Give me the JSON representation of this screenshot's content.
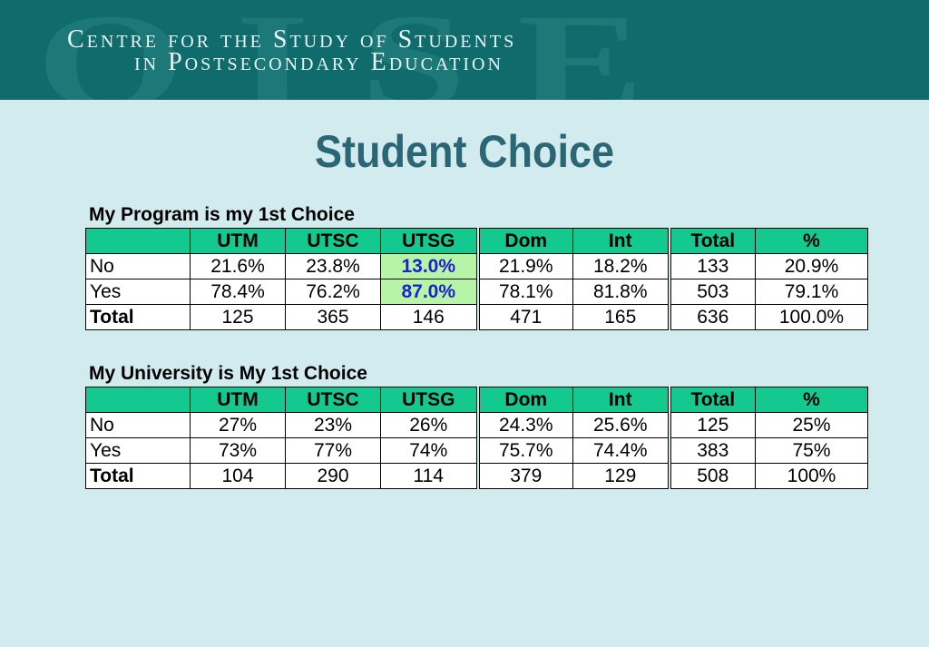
{
  "header": {
    "watermark": "OISE",
    "line1": "Centre for the Study of Students",
    "line2": "in Postsecondary Education"
  },
  "page_title": "Student Choice",
  "tables": [
    {
      "caption": "My Program is my 1st Choice",
      "columns": [
        "",
        "UTM",
        "UTSC",
        "UTSG",
        "Dom",
        "Int",
        "Total",
        "%"
      ],
      "rows": [
        [
          "No",
          "21.6%",
          "23.8%",
          "13.0%",
          "21.9%",
          "18.2%",
          "133",
          "20.9%"
        ],
        [
          "Yes",
          "78.4%",
          "76.2%",
          "87.0%",
          "78.1%",
          "81.8%",
          "503",
          "79.1%"
        ],
        [
          "Total",
          "125",
          "365",
          "146",
          "471",
          "165",
          "636",
          "100.0%"
        ]
      ],
      "highlight_color": "#b7f5a6",
      "highlight_text_color": "#1d1fd6"
    },
    {
      "caption": "My University is My 1st Choice",
      "columns": [
        "",
        "UTM",
        "UTSC",
        "UTSG",
        "Dom",
        "Int",
        "Total",
        "%"
      ],
      "rows": [
        [
          "No",
          "27%",
          "23%",
          "26%",
          "24.3%",
          "25.6%",
          "125",
          "25%"
        ],
        [
          "Yes",
          "73%",
          "77%",
          "74%",
          "75.7%",
          "74.4%",
          "383",
          "75%"
        ],
        [
          "Total",
          "104",
          "290",
          "114",
          "379",
          "129",
          "508",
          "100%"
        ]
      ]
    }
  ],
  "colors": {
    "banner": "#0f6b6c",
    "background": "#d2ebee",
    "title": "#2b6675",
    "table_header": "#14c98f"
  }
}
